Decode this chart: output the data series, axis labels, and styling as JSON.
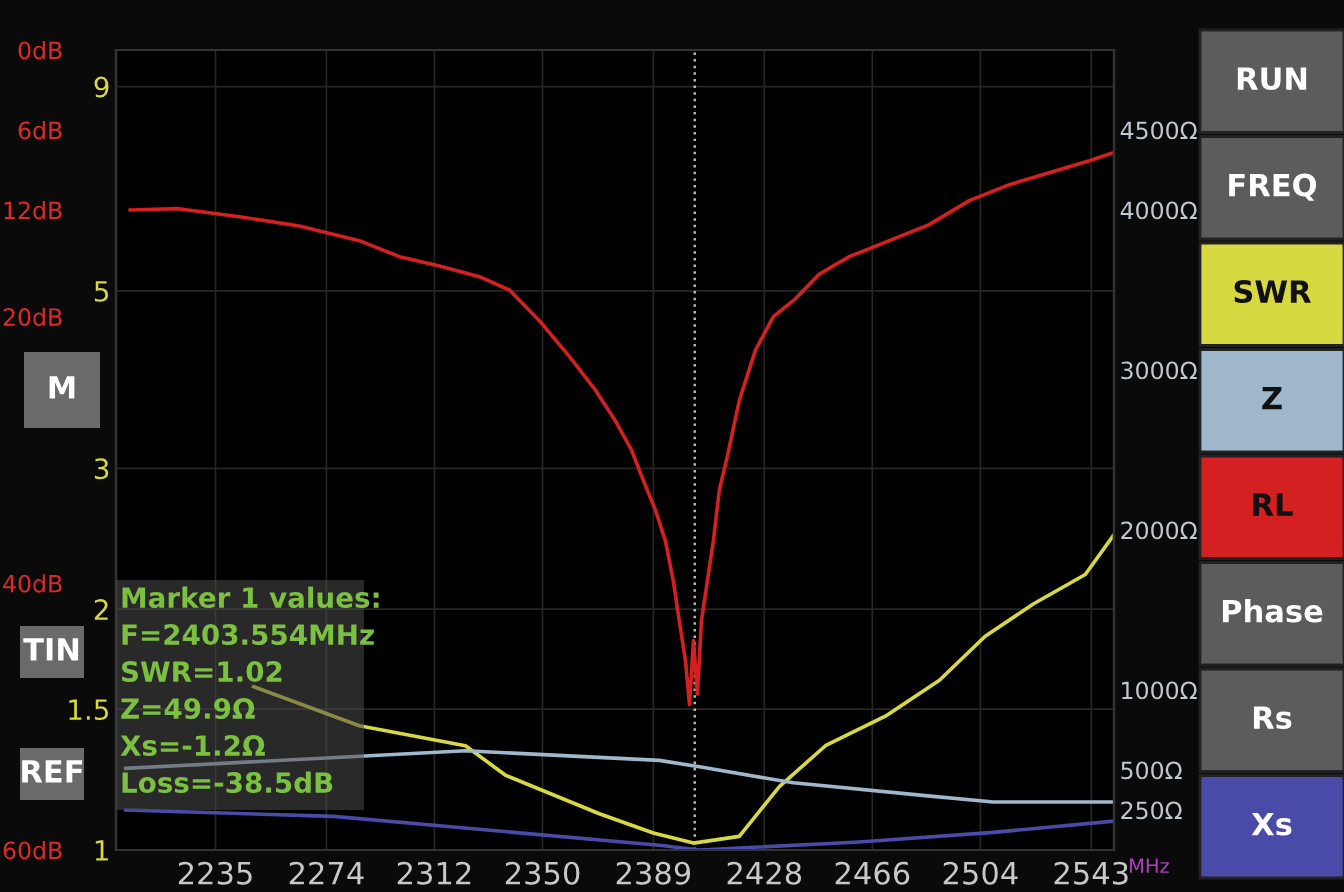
{
  "chart_data": {
    "type": "line",
    "xlabel": "MHz",
    "xlim": [
      2200,
      2551
    ],
    "xticks": [
      2235,
      2274,
      2312,
      2350,
      2389,
      2428,
      2466,
      2504,
      2543
    ],
    "log": "y",
    "ylim": [
      1,
      10
    ],
    "yticks": [
      1,
      1.5,
      2,
      3,
      5,
      9
    ],
    "y2lim": [
      60,
      0
    ],
    "y2ticks": [
      {
        "value": 0,
        "label": "0dB"
      },
      {
        "value": 6,
        "label": "6dB"
      },
      {
        "value": 12,
        "label": "12dB"
      },
      {
        "value": 20,
        "label": "20dB"
      },
      {
        "value": 40,
        "label": "40dB"
      },
      {
        "value": 60,
        "label": "60dB"
      }
    ],
    "y3lim": [
      0,
      5000
    ],
    "y3ticks": [
      {
        "value": 250,
        "label": "250Ω"
      },
      {
        "value": 500,
        "label": "500Ω"
      },
      {
        "value": 1000,
        "label": "1000Ω"
      },
      {
        "value": 2000,
        "label": "2000Ω"
      },
      {
        "value": 3000,
        "label": "3000Ω"
      },
      {
        "value": 4000,
        "label": "4000Ω"
      },
      {
        "value": 4500,
        "label": "4500Ω"
      }
    ],
    "grid": true,
    "legend": "right",
    "marker": "none",
    "line_style": "solid",
    "ref_lines": [
      {
        "axis": "x",
        "value": 2403.554,
        "color": "#b8b8a0",
        "line_style": "dotted"
      }
    ],
    "series": [
      {
        "name": "SWR",
        "color": "#d8d840",
        "x": [
          2248.4,
          2285.6,
          2322.9,
          2337.0,
          2370.0,
          2389.0,
          2403.1,
          2419.2,
          2433.3,
          2449.5,
          2470.6,
          2489.6,
          2505.7,
          2522.6,
          2540.9,
          2550.7
        ],
        "values": [
          1.6,
          1.43,
          1.35,
          1.24,
          1.11,
          1.05,
          1.02,
          1.04,
          1.2,
          1.35,
          1.47,
          1.63,
          1.85,
          2.03,
          2.21,
          2.47
        ]
      },
      {
        "name": "Z",
        "color": "#a0b8cc",
        "axis": "y3",
        "x": [
          2203.4,
          2322.9,
          2391.1,
          2405.2,
          2438.2,
          2484.6,
          2508.5,
          2550.7
        ],
        "values": [
          510,
          620,
          560,
          520,
          420,
          340,
          300,
          300
        ]
      },
      {
        "name": "RL",
        "color": "#d42020",
        "axis": "y2",
        "x": [
          2205,
          2222,
          2243.4,
          2264.5,
          2285.6,
          2299.7,
          2313.8,
          2327.8,
          2338.4,
          2348.9,
          2359.5,
          2368.6,
          2375.6,
          2381.3,
          2385.5,
          2389.7,
          2393.2,
          2396.0,
          2398.1,
          2400.3,
          2401.7,
          2403.1,
          2404.5,
          2405.9,
          2408.0,
          2410.1,
          2412.2,
          2415.0,
          2419.2,
          2424.9,
          2431.2,
          2438.2,
          2447.4,
          2457.9,
          2472.0,
          2486.0,
          2500.1,
          2514.2,
          2528.2,
          2542.3,
          2550.7
        ],
        "values": [
          12.0,
          11.9,
          12.5,
          13.2,
          14.3,
          15.5,
          16.2,
          17.0,
          18.0,
          20.3,
          23.0,
          25.5,
          27.8,
          30.0,
          32.3,
          34.5,
          36.8,
          39.8,
          42.8,
          45.8,
          49.1,
          44.3,
          48.3,
          42.8,
          39.8,
          36.8,
          33.0,
          30.5,
          26.3,
          22.5,
          20.0,
          18.8,
          16.8,
          15.5,
          14.3,
          13.1,
          11.3,
          10.1,
          9.2,
          8.3,
          7.7
        ]
      },
      {
        "name": "Xs",
        "color": "#4a4aa8",
        "axis": "y3",
        "x": [
          2203.4,
          2276.5,
          2391.1,
          2405.2,
          2461.4,
          2508.5,
          2550.7
        ],
        "values": [
          250,
          210,
          30,
          0,
          50,
          110,
          180
        ]
      }
    ],
    "annotations": [
      "RUN",
      "FREQ",
      "Phase",
      "Rs",
      "M",
      "TIN",
      "REF",
      "Marker 1 values:",
      "F=2403.554MHz",
      "SWR=1.02",
      "Z=49.9Ω",
      "Xs=-1.2Ω",
      "Loss=-38.5dB"
    ]
  }
}
